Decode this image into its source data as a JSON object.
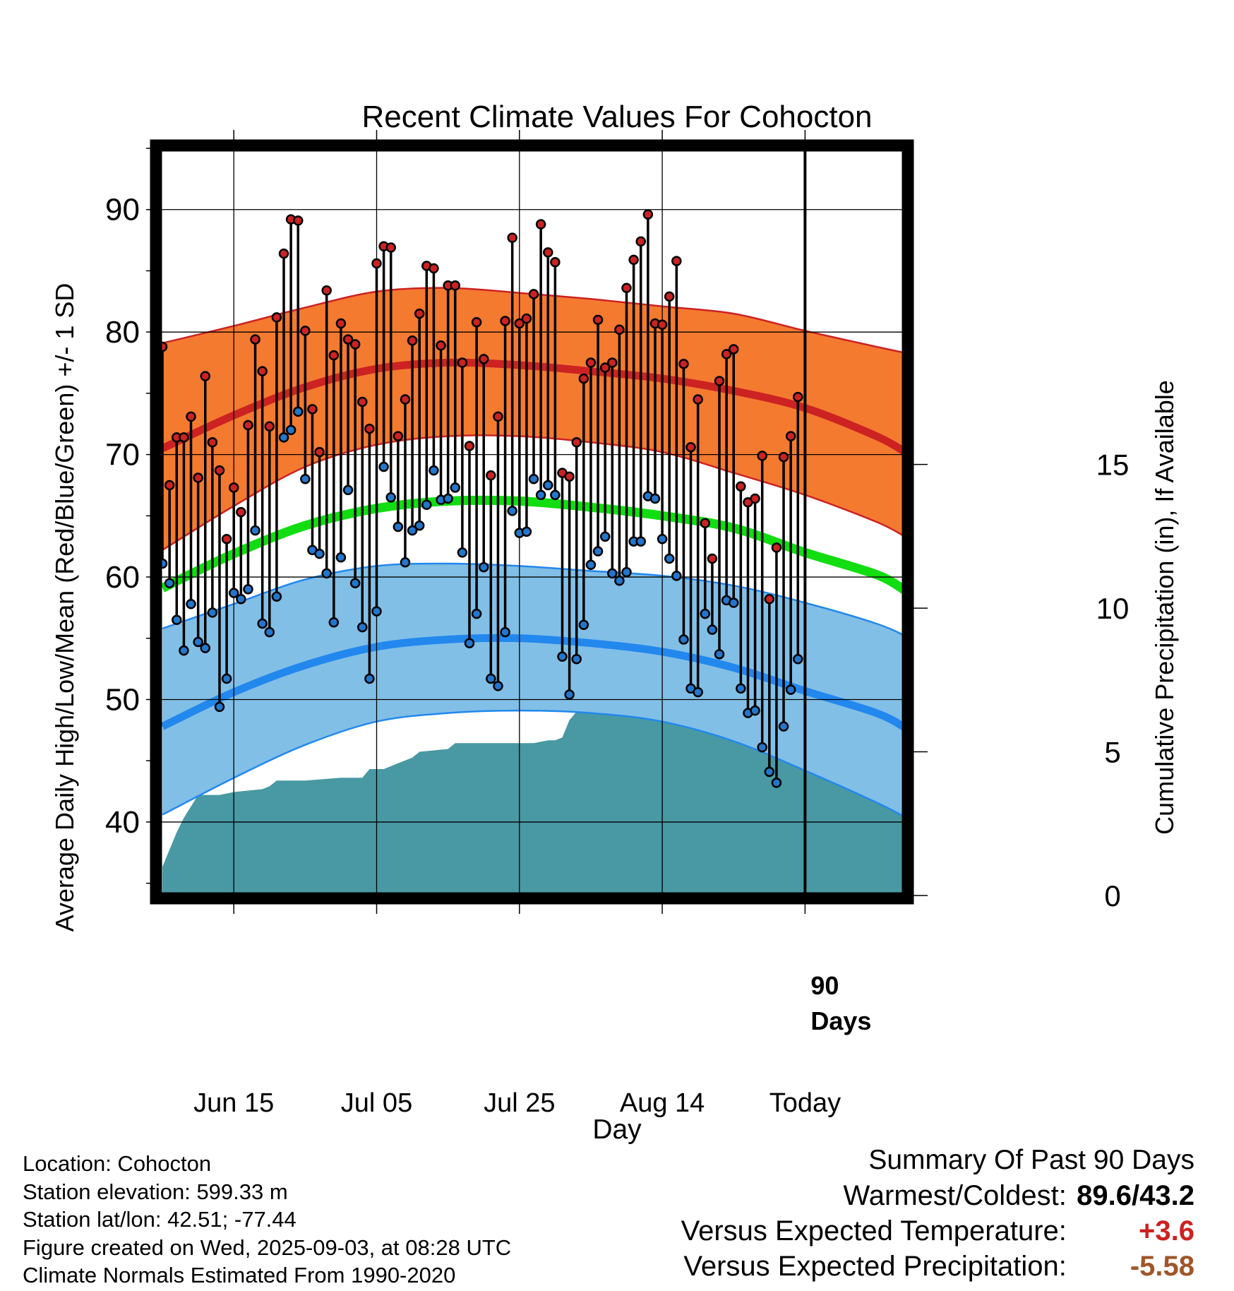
{
  "chart_data": {
    "type": "line",
    "title": "Recent Climate Values For Cohocton",
    "xlabel": "Day",
    "ylabel": "Average Daily High/Low/Mean (Red/Blue/Green) +/- 1 SD",
    "y2label": "Cumulative Precipitation (in), If Available",
    "ylim": [
      34,
      95
    ],
    "y2lim": [
      0,
      26
    ],
    "xlim": [
      -0.5,
      104
    ],
    "x_tick_labels": [
      {
        "x": 10,
        "label": "Jun 15"
      },
      {
        "x": 30,
        "label": "Jul 05"
      },
      {
        "x": 50,
        "label": "Jul 25"
      },
      {
        "x": 70,
        "label": "Aug 14"
      },
      {
        "x": 90,
        "label": "Today"
      }
    ],
    "y_ticks": [
      40,
      50,
      60,
      70,
      80,
      90
    ],
    "y2_ticks": [
      0,
      5,
      10,
      15
    ],
    "marker_label": "90\nDays",
    "today_x": 90,
    "series": [
      {
        "name": "High",
        "values": [
          78.8,
          67.5,
          71.4,
          71.4,
          73.1,
          68.1,
          76.4,
          71.0,
          68.7,
          63.1,
          67.3,
          65.3,
          72.4,
          79.4,
          76.8,
          72.3,
          81.2,
          86.4,
          89.2,
          89.1,
          80.1,
          73.7,
          70.2,
          83.4,
          78.1,
          80.7,
          79.4,
          79.0,
          74.3,
          72.1,
          85.6,
          87.0,
          86.9,
          71.5,
          74.5,
          79.3,
          81.5,
          85.4,
          85.2,
          78.9,
          83.8,
          83.8,
          77.5,
          70.7,
          80.8,
          77.8,
          68.3,
          73.1,
          80.9,
          87.7,
          80.7,
          81.1,
          83.1,
          88.8,
          86.5,
          85.7,
          68.5,
          68.2,
          71.0,
          76.2,
          77.5,
          81.0,
          77.1,
          77.5,
          80.2,
          83.6,
          85.9,
          87.4,
          89.6,
          80.7,
          80.6,
          82.9,
          85.8,
          77.4,
          70.6,
          74.5,
          64.4,
          61.5,
          76.0,
          78.2,
          78.6,
          67.4,
          66.1,
          66.4,
          69.9,
          58.2,
          62.4,
          69.8,
          71.5,
          74.7
        ]
      },
      {
        "name": "Low",
        "values": [
          61.1,
          59.5,
          56.5,
          54.0,
          57.8,
          54.7,
          54.2,
          57.1,
          49.4,
          51.7,
          58.7,
          58.2,
          59.0,
          63.8,
          56.2,
          55.5,
          58.4,
          71.4,
          72.0,
          73.5,
          68.0,
          62.2,
          61.9,
          60.3,
          56.3,
          61.6,
          67.1,
          59.5,
          55.9,
          51.7,
          57.2,
          69.0,
          66.5,
          64.1,
          61.2,
          63.8,
          64.2,
          65.9,
          68.7,
          66.3,
          66.4,
          67.3,
          62.0,
          54.6,
          57.0,
          60.8,
          51.7,
          51.1,
          55.5,
          65.4,
          63.6,
          63.7,
          68.0,
          66.7,
          67.5,
          66.7,
          53.5,
          50.4,
          53.3,
          56.1,
          61.0,
          62.1,
          63.3,
          60.3,
          59.7,
          60.4,
          62.9,
          62.9,
          66.6,
          66.4,
          63.1,
          61.5,
          60.1,
          54.9,
          50.9,
          50.6,
          57.0,
          55.7,
          53.7,
          58.1,
          57.9,
          50.9,
          48.9,
          49.1,
          46.1,
          44.1,
          43.2,
          47.8,
          50.8,
          53.3
        ]
      },
      {
        "name": "Normal High",
        "x": [
          0,
          10,
          20,
          30,
          40,
          50,
          60,
          70,
          80,
          90,
          100,
          104
        ],
        "values": [
          70.5,
          73.2,
          75.5,
          77.0,
          77.5,
          77.3,
          76.8,
          76.2,
          75.2,
          73.8,
          71.5,
          70.2
        ]
      },
      {
        "name": "Normal High +1 SD",
        "x": [
          0,
          10,
          20,
          30,
          40,
          50,
          60,
          70,
          80,
          90,
          100,
          104
        ],
        "values": [
          79.1,
          80.5,
          82.0,
          83.3,
          83.6,
          83.2,
          82.7,
          82.1,
          81.5,
          80.1,
          78.8,
          78.3
        ]
      },
      {
        "name": "Normal High -1 SD",
        "x": [
          0,
          10,
          20,
          30,
          40,
          50,
          60,
          70,
          80,
          90,
          100,
          104
        ],
        "values": [
          62.2,
          65.8,
          69.0,
          70.8,
          71.5,
          71.5,
          71.0,
          70.2,
          68.5,
          66.7,
          64.5,
          63.3
        ]
      },
      {
        "name": "Normal Mean",
        "x": [
          0,
          10,
          20,
          30,
          40,
          50,
          60,
          70,
          80,
          90,
          100,
          104
        ],
        "values": [
          59.1,
          61.9,
          64.2,
          65.6,
          66.2,
          66.2,
          65.7,
          65.0,
          64.0,
          62.0,
          60.2,
          58.9
        ]
      },
      {
        "name": "Normal Low",
        "x": [
          0,
          10,
          20,
          30,
          40,
          50,
          60,
          70,
          80,
          90,
          100,
          104
        ],
        "values": [
          47.8,
          50.6,
          52.8,
          54.3,
          54.9,
          55.0,
          54.6,
          53.9,
          52.6,
          50.7,
          48.9,
          47.7
        ]
      },
      {
        "name": "Normal Low +1 SD",
        "x": [
          0,
          10,
          20,
          30,
          40,
          50,
          60,
          70,
          80,
          90,
          100,
          104
        ],
        "values": [
          55.8,
          57.8,
          59.8,
          60.9,
          61.1,
          60.9,
          60.5,
          60.1,
          59.3,
          57.9,
          56.2,
          55.2
        ]
      },
      {
        "name": "Normal Low -1 SD",
        "x": [
          0,
          10,
          20,
          30,
          40,
          50,
          60,
          70,
          80,
          90,
          100,
          104
        ],
        "values": [
          40.6,
          43.6,
          46.3,
          48.2,
          48.9,
          49.1,
          48.9,
          48.2,
          46.6,
          44.2,
          41.6,
          40.4
        ]
      },
      {
        "name": "Cumulative Precipitation",
        "x": [
          0,
          1,
          2,
          3,
          4,
          5,
          6,
          7,
          8,
          10,
          14,
          15,
          16,
          18,
          20,
          25,
          28,
          29,
          31,
          33,
          35,
          36,
          40,
          41,
          43,
          45,
          47,
          50,
          52,
          54,
          55,
          56,
          57,
          58,
          61,
          64,
          65,
          68,
          70,
          72,
          74,
          75,
          76,
          77,
          78,
          79,
          80,
          81,
          82,
          83,
          84,
          85,
          86,
          87,
          89,
          90,
          104
        ],
        "values": [
          1.0,
          1.6,
          2.2,
          2.7,
          3.1,
          3.5,
          3.5,
          3.5,
          3.5,
          3.6,
          3.7,
          3.8,
          4.0,
          4.0,
          4.0,
          4.1,
          4.1,
          4.4,
          4.4,
          4.6,
          4.8,
          5.0,
          5.1,
          5.3,
          5.3,
          5.3,
          5.3,
          5.3,
          5.3,
          5.4,
          5.4,
          5.5,
          6.1,
          6.4,
          6.4,
          6.4,
          6.4,
          6.4,
          6.4,
          6.5,
          6.6,
          6.6,
          6.7,
          6.9,
          7.1,
          7.1,
          7.1,
          7.2,
          7.4,
          7.6,
          7.6,
          7.7,
          7.7,
          7.8,
          7.8,
          7.8,
          7.8
        ]
      }
    ],
    "colors": {
      "high_band": "#f47a30",
      "high_band_edge": "#cc2222",
      "normal_high": "#cc2222",
      "normal_mean": "#11dd11",
      "low_band": "#82bfe6",
      "low_band_edge": "#2288ee",
      "normal_low": "#2288ee",
      "high_marker": "#cc2222",
      "low_marker": "#2277cc",
      "precip": "#4899a3",
      "warm_anomaly": "#cc2222",
      "precip_anomaly": "#a0562a"
    }
  },
  "info": {
    "location": "Location: Cohocton",
    "elevation": "Station elevation: 599.33 m",
    "latlon": "Station lat/lon: 42.51; -77.44",
    "created": "Figure created on Wed, 2025-09-03, at 08:28 UTC",
    "normals": "Climate Normals Estimated From 1990-2020"
  },
  "summary": {
    "heading": "Summary Of Past 90 Days",
    "warmest_label": "Warmest/Coldest:",
    "warmest_value": "89.6/43.2",
    "temp_label": "Versus Expected Temperature:",
    "temp_value": "+3.6",
    "precip_label": "Versus Expected Precipitation:",
    "precip_value": "-5.58"
  }
}
